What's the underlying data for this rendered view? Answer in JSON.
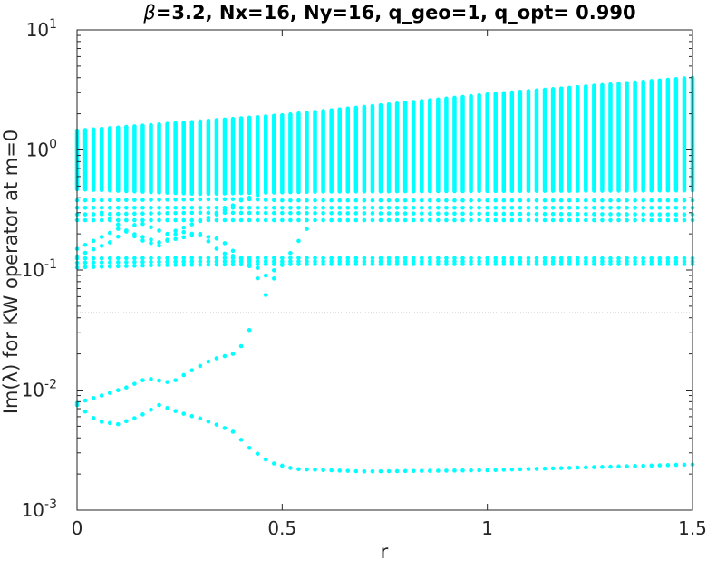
{
  "chart_data": {
    "type": "scatter",
    "title": "β=3.2, Nx=16, Ny=16, q_geo=1, q_opt= 0.990",
    "title_parts": {
      "beta_symbol": "β",
      "rest": "=3.2, Nx=16, Ny=16, q_geo=1, q_opt= 0.990"
    },
    "xlabel": "r",
    "ylabel": "Im(λ) for KW operator at m=0",
    "xlim": [
      0,
      1.5
    ],
    "ylim": [
      0.001,
      10
    ],
    "yscale": "log",
    "grid": false,
    "legend": "none",
    "marker_color": "#00ffff",
    "x_ticks": [
      {
        "value": 0,
        "label": "0"
      },
      {
        "value": 0.5,
        "label": "0.5"
      },
      {
        "value": 1,
        "label": "1"
      },
      {
        "value": 1.5,
        "label": "1.5"
      }
    ],
    "y_ticks": [
      {
        "value": 0.001,
        "base": "10",
        "exp": "-3"
      },
      {
        "value": 0.01,
        "base": "10",
        "exp": "-2"
      },
      {
        "value": 0.1,
        "base": "10",
        "exp": "-1"
      },
      {
        "value": 1,
        "base": "10",
        "exp": "0"
      },
      {
        "value": 10,
        "base": "10",
        "exp": "1"
      }
    ],
    "reference_line": {
      "y": 0.044,
      "style": "dotted",
      "color": "#000000"
    },
    "x_step": 0.02,
    "band": {
      "description_free": true,
      "lower_points": [
        [
          0,
          0.47
        ],
        [
          0.3,
          0.43
        ],
        [
          0.6,
          0.45
        ],
        [
          1.5,
          0.46
        ]
      ],
      "upper_points": [
        [
          0,
          1.45
        ],
        [
          0.5,
          1.95
        ],
        [
          1.0,
          2.9
        ],
        [
          1.5,
          4.0
        ]
      ]
    },
    "series": [
      {
        "points": [
          [
            0,
            0.38
          ],
          [
            0.4,
            0.39
          ],
          [
            0.5,
            0.38
          ],
          [
            1.5,
            0.38
          ]
        ]
      },
      {
        "points": [
          [
            0,
            0.33
          ],
          [
            0.4,
            0.33
          ],
          [
            1.5,
            0.33
          ]
        ]
      },
      {
        "points": [
          [
            0,
            0.29
          ],
          [
            0.3,
            0.3
          ],
          [
            1.5,
            0.29
          ]
        ]
      },
      {
        "points": [
          [
            0,
            0.26
          ],
          [
            0.3,
            0.26
          ],
          [
            1.5,
            0.26
          ]
        ]
      },
      {
        "points": [
          [
            0,
            0.125
          ],
          [
            0.3,
            0.126
          ],
          [
            1.5,
            0.125
          ]
        ]
      },
      {
        "points": [
          [
            0,
            0.115
          ],
          [
            0.3,
            0.118
          ],
          [
            1.5,
            0.118
          ]
        ]
      },
      {
        "points": [
          [
            0,
            0.105
          ],
          [
            0.2,
            0.11
          ],
          [
            0.5,
            0.112
          ],
          [
            1.5,
            0.112
          ]
        ]
      },
      {
        "points": [
          [
            0,
            0.13
          ],
          [
            0.08,
            0.17
          ],
          [
            0.15,
            0.25
          ],
          [
            0.22,
            0.2
          ],
          [
            0.28,
            0.24
          ],
          [
            0.35,
            0.3
          ],
          [
            0.4,
            0.38
          ],
          [
            0.44,
            0.42
          ]
        ]
      },
      {
        "points": [
          [
            0,
            0.15
          ],
          [
            0.1,
            0.22
          ],
          [
            0.2,
            0.17
          ],
          [
            0.3,
            0.2
          ],
          [
            0.35,
            0.14
          ],
          [
            0.42,
            0.12
          ],
          [
            0.46,
            0.09
          ],
          [
            0.5,
            0.11
          ],
          [
            0.56,
            0.22
          ]
        ]
      },
      {
        "points": [
          [
            0.06,
            0.3
          ],
          [
            0.15,
            0.18
          ],
          [
            0.2,
            0.16
          ],
          [
            0.25,
            0.21
          ],
          [
            0.35,
            0.18
          ],
          [
            0.43,
            0.1
          ],
          [
            0.46,
            0.062
          ],
          [
            0.48,
            0.085
          ]
        ]
      },
      {
        "points": [
          [
            0,
            0.0078
          ],
          [
            0.06,
            0.009
          ],
          [
            0.12,
            0.0105
          ],
          [
            0.17,
            0.0125
          ],
          [
            0.23,
            0.0115
          ],
          [
            0.27,
            0.014
          ],
          [
            0.33,
            0.018
          ],
          [
            0.38,
            0.02
          ],
          [
            0.41,
            0.025
          ],
          [
            0.43,
            0.04
          ]
        ]
      },
      {
        "points": [
          [
            0,
            0.0075
          ],
          [
            0.05,
            0.0055
          ],
          [
            0.1,
            0.0052
          ],
          [
            0.15,
            0.006
          ],
          [
            0.2,
            0.0075
          ],
          [
            0.25,
            0.0065
          ],
          [
            0.3,
            0.0058
          ],
          [
            0.35,
            0.005
          ],
          [
            0.38,
            0.0045
          ],
          [
            0.42,
            0.0033
          ],
          [
            0.47,
            0.0025
          ],
          [
            0.53,
            0.0022
          ],
          [
            0.7,
            0.0021
          ],
          [
            1.0,
            0.00215
          ],
          [
            1.3,
            0.0023
          ],
          [
            1.5,
            0.0024
          ]
        ]
      }
    ]
  }
}
